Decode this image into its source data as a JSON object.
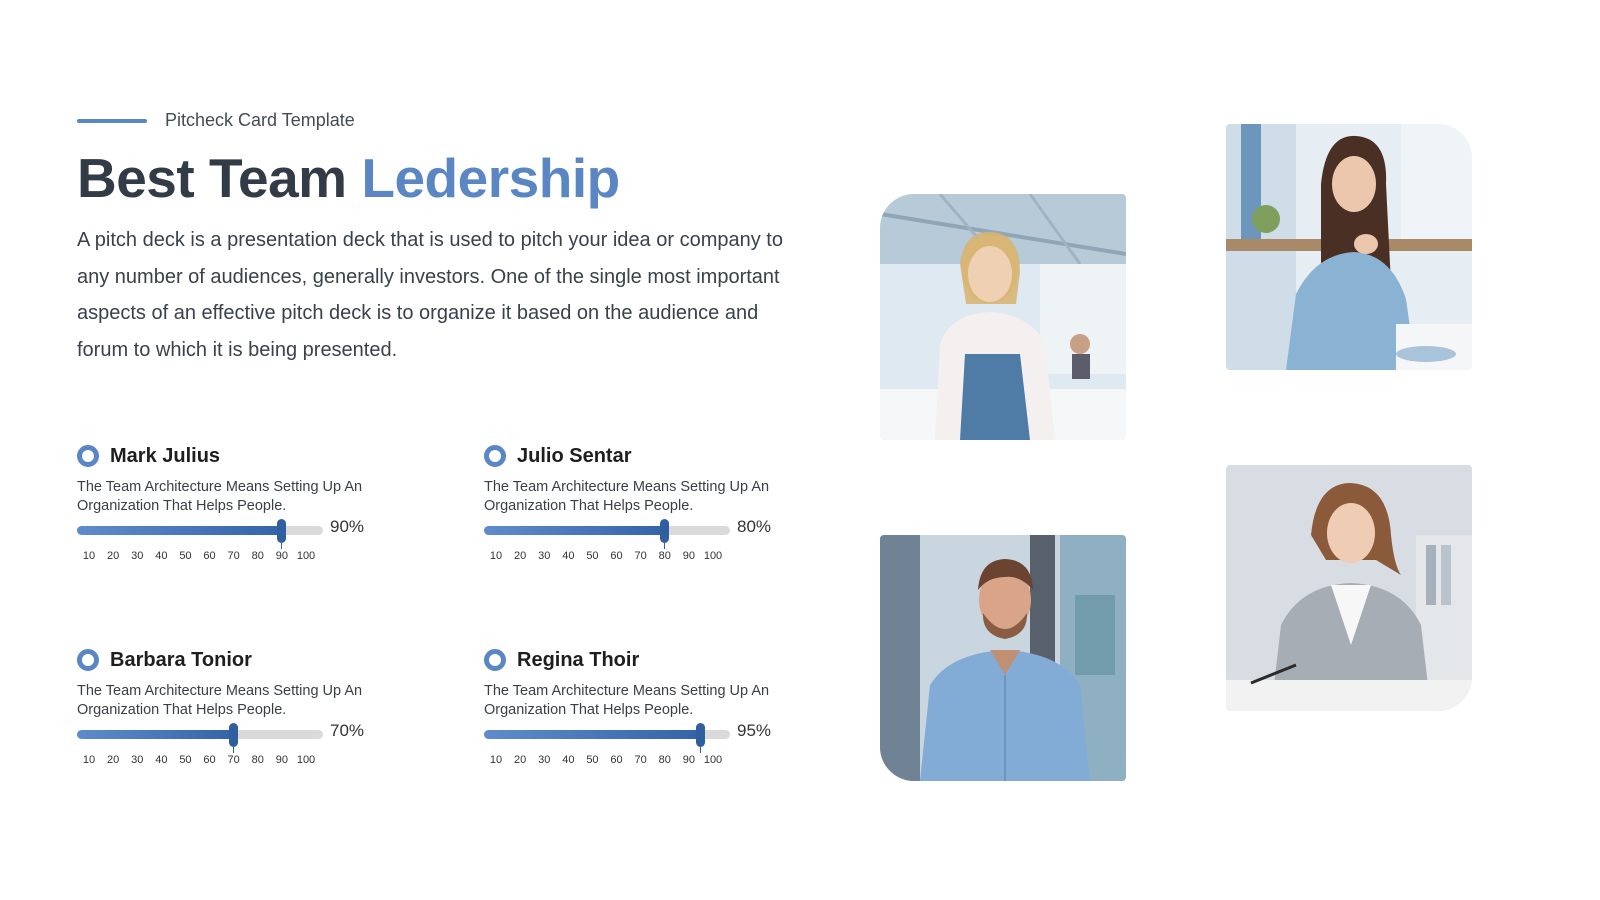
{
  "header": {
    "eyebrow": "Pitcheck Card Template",
    "title_main": "Best Team",
    "title_accent": "Ledership",
    "description": "A pitch deck is a presentation deck that is used to pitch your idea or company to any number of audiences, generally investors. One of the single most important aspects of an effective pitch deck is to organize it based on the audience and forum to which it is being presented."
  },
  "colors": {
    "accent": "#5b86c4",
    "bar_dark": "#3563a8",
    "track": "#dadada"
  },
  "scale_ticks": [
    "10",
    "20",
    "30",
    "40",
    "50",
    "60",
    "70",
    "80",
    "90",
    "100"
  ],
  "members": [
    {
      "name": "Mark Julius",
      "description": "The Team Architecture Means Setting Up An Organization That Helps People.",
      "value": 90,
      "value_label": "90%"
    },
    {
      "name": "Julio Sentar",
      "description": "The Team Architecture Means Setting Up An Organization That Helps People.",
      "value": 80,
      "value_label": "80%"
    },
    {
      "name": "Barbara Tonior",
      "description": "The Team Architecture Means Setting Up An Organization That Helps People.",
      "value": 70,
      "value_label": "70%"
    },
    {
      "name": "Regina Thoir",
      "description": "The Team Architecture Means Setting Up An Organization That Helps People.",
      "value": 95,
      "value_label": "95%"
    }
  ],
  "photos": [
    {
      "icon": "woman-office-photo"
    },
    {
      "icon": "woman-thinking-photo"
    },
    {
      "icon": "man-casual-photo"
    },
    {
      "icon": "businesswoman-photo"
    }
  ]
}
